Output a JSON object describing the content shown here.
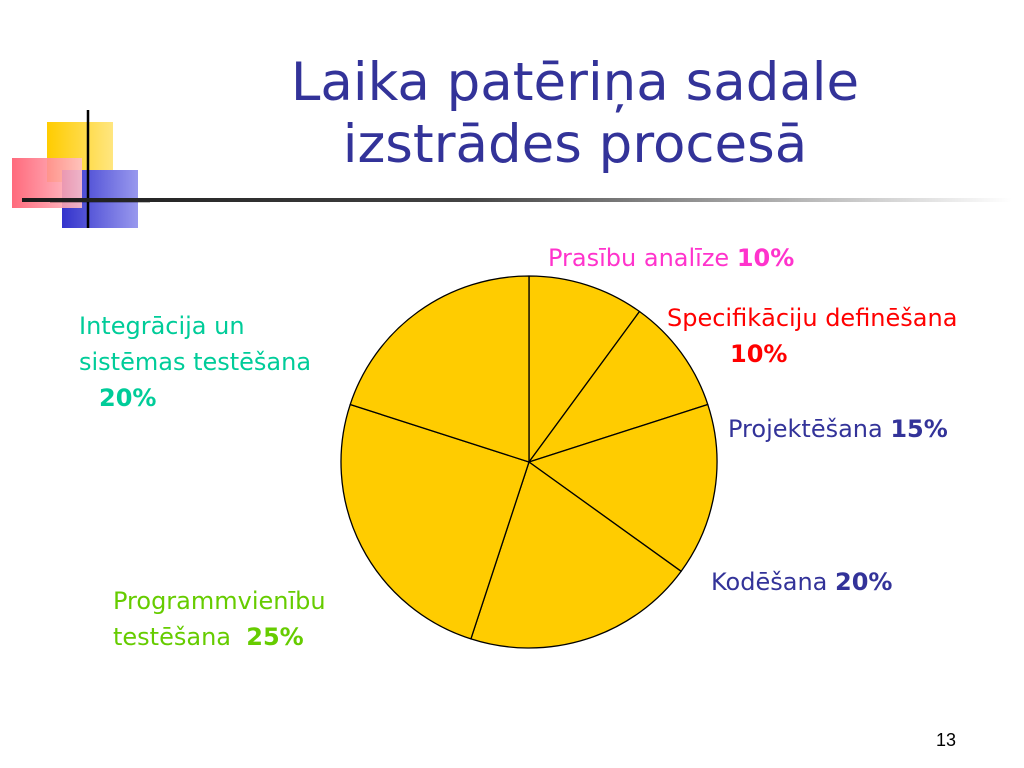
{
  "title": {
    "line1": "Laika patēriņa sadale",
    "line2": "izstrādes procesā"
  },
  "page_number": "13",
  "colors": {
    "title": "#333399",
    "slice_fill": "#FFCC00",
    "slice_stroke": "#000000"
  },
  "chart_data": {
    "type": "pie",
    "start": "top",
    "direction": "clockwise",
    "slices": [
      {
        "label": "Prasību analīze",
        "value": 10,
        "value_label": "10%",
        "label_color": "#FF33CC"
      },
      {
        "label": "Specifikāciju definēšana",
        "value": 10,
        "value_label": "10%",
        "label_color": "#FF0000"
      },
      {
        "label": "Projektēšana",
        "value": 15,
        "value_label": "15%",
        "label_color": "#333399"
      },
      {
        "label": "Kodēšana",
        "value": 20,
        "value_label": "20%",
        "label_color": "#333399"
      },
      {
        "label_lines": [
          "Programmvienību",
          "testēšana"
        ],
        "value": 25,
        "value_label": "25%",
        "label_color": "#66CC00"
      },
      {
        "label_lines": [
          "Integrācija un",
          "sistēmas testēšana"
        ],
        "value": 20,
        "value_label": "20%",
        "label_color": "#00CC99"
      }
    ]
  }
}
